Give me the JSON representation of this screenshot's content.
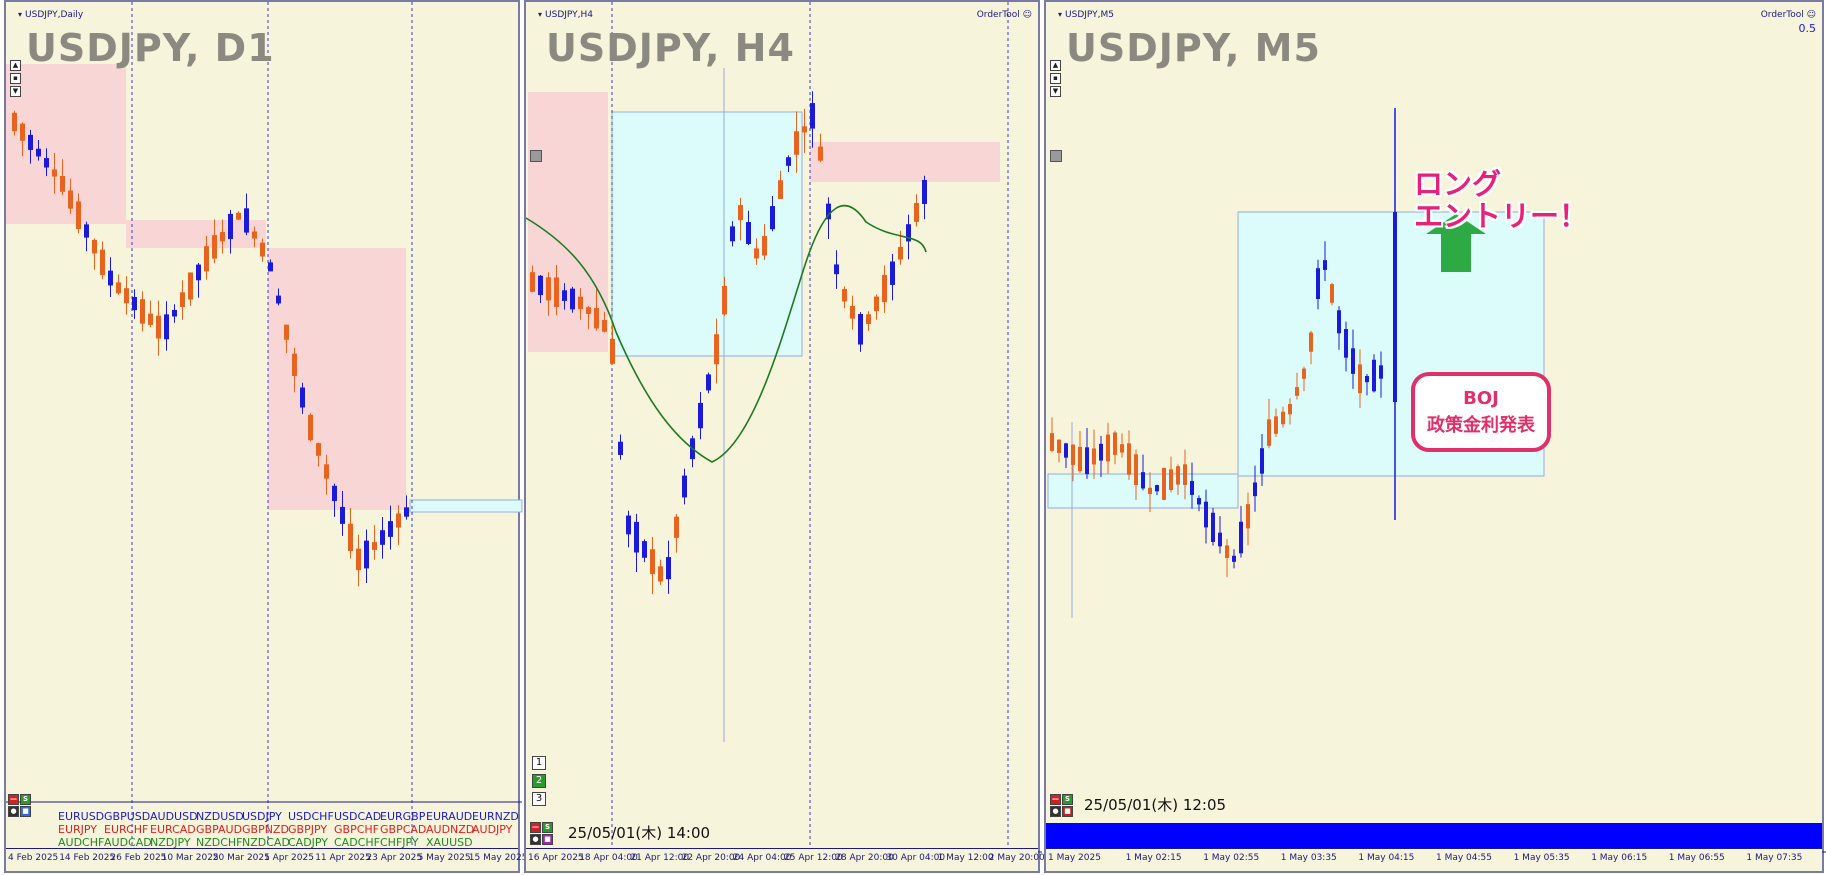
{
  "panels": {
    "d1": {
      "window_title": "USDJPY,Daily",
      "symbol_label": "USDJPY, D1",
      "xaxis_labels": [
        "4 Feb 2025",
        "14 Feb 2025",
        "26 Feb 2025",
        "10 Mar 2025",
        "20 Mar 2025",
        "1 Apr 2025",
        "11 Apr 2025",
        "23 Apr 2025",
        "5 May 2025",
        "15 May 2025"
      ],
      "pairs_rows": [
        [
          "EURUSD",
          "GBPUSD",
          "AUDUSD",
          "NZDUSD",
          "USDJPY",
          "USDCHF",
          "USDCAD",
          "EURGBP",
          "EURAUD",
          "EURNZD"
        ],
        [
          "EURJPY",
          "EURCHF",
          "EURCAD",
          "GBPAUD",
          "GBPNZD",
          "GBPJPY",
          "GBPCHF",
          "GBPCAD",
          "AUDNZD",
          "AUDJPY"
        ],
        [
          "AUDCHF",
          "AUDCAD",
          "NZDJPY",
          "NZDCHF",
          "NZDCAD",
          "CADJPY",
          "CADCHF",
          "CHFJPY",
          "XAUUSD"
        ]
      ],
      "buttons": {
        "minus": "—",
        "s": "S"
      }
    },
    "h4": {
      "window_title": "USDJPY,H4",
      "symbol_label": "USDJPY, H4",
      "ordertool": "OrderTool",
      "xaxis_labels": [
        "16 Apr 2025",
        "18 Apr 04:00",
        "21 Apr 12:00",
        "22 Apr 20:00",
        "24 Apr 04:00",
        "25 Apr 12:00",
        "28 Apr 20:00",
        "30 Apr 04:00",
        "1 May 12:00",
        "2 May 20:00"
      ],
      "timestamp": "25/05/01(木) 14:00",
      "tf_buttons": [
        "1",
        "2",
        "3"
      ],
      "buttons": {
        "minus": "—",
        "s": "S"
      }
    },
    "m5": {
      "window_title": "USDJPY,M5",
      "symbol_label": "USDJPY, M5",
      "ordertool": "OrderTool",
      "right_value": "0.5",
      "xaxis_labels": [
        "1 May 2025",
        "1 May 02:15",
        "1 May 02:55",
        "1 May 03:35",
        "1 May 04:15",
        "1 May 04:55",
        "1 May 05:35",
        "1 May 06:15",
        "1 May 06:55",
        "1 May 07:35"
      ],
      "timestamp": "25/05/01(木) 12:05",
      "callout": {
        "line1": "BOJ",
        "line2": "政策金利発表"
      },
      "long_entry": {
        "line1": "ロング",
        "line2": "エントリー！"
      },
      "buttons": {
        "minus": "—",
        "s": "S"
      }
    }
  },
  "colors": {
    "bull": "#1a1ad8",
    "bear": "#e8631e",
    "ma": "#1f7a1f",
    "pink_zone": "#f9d6d6",
    "cyan_zone": "#dcfcfb",
    "arrow": "#2eaa44"
  }
}
